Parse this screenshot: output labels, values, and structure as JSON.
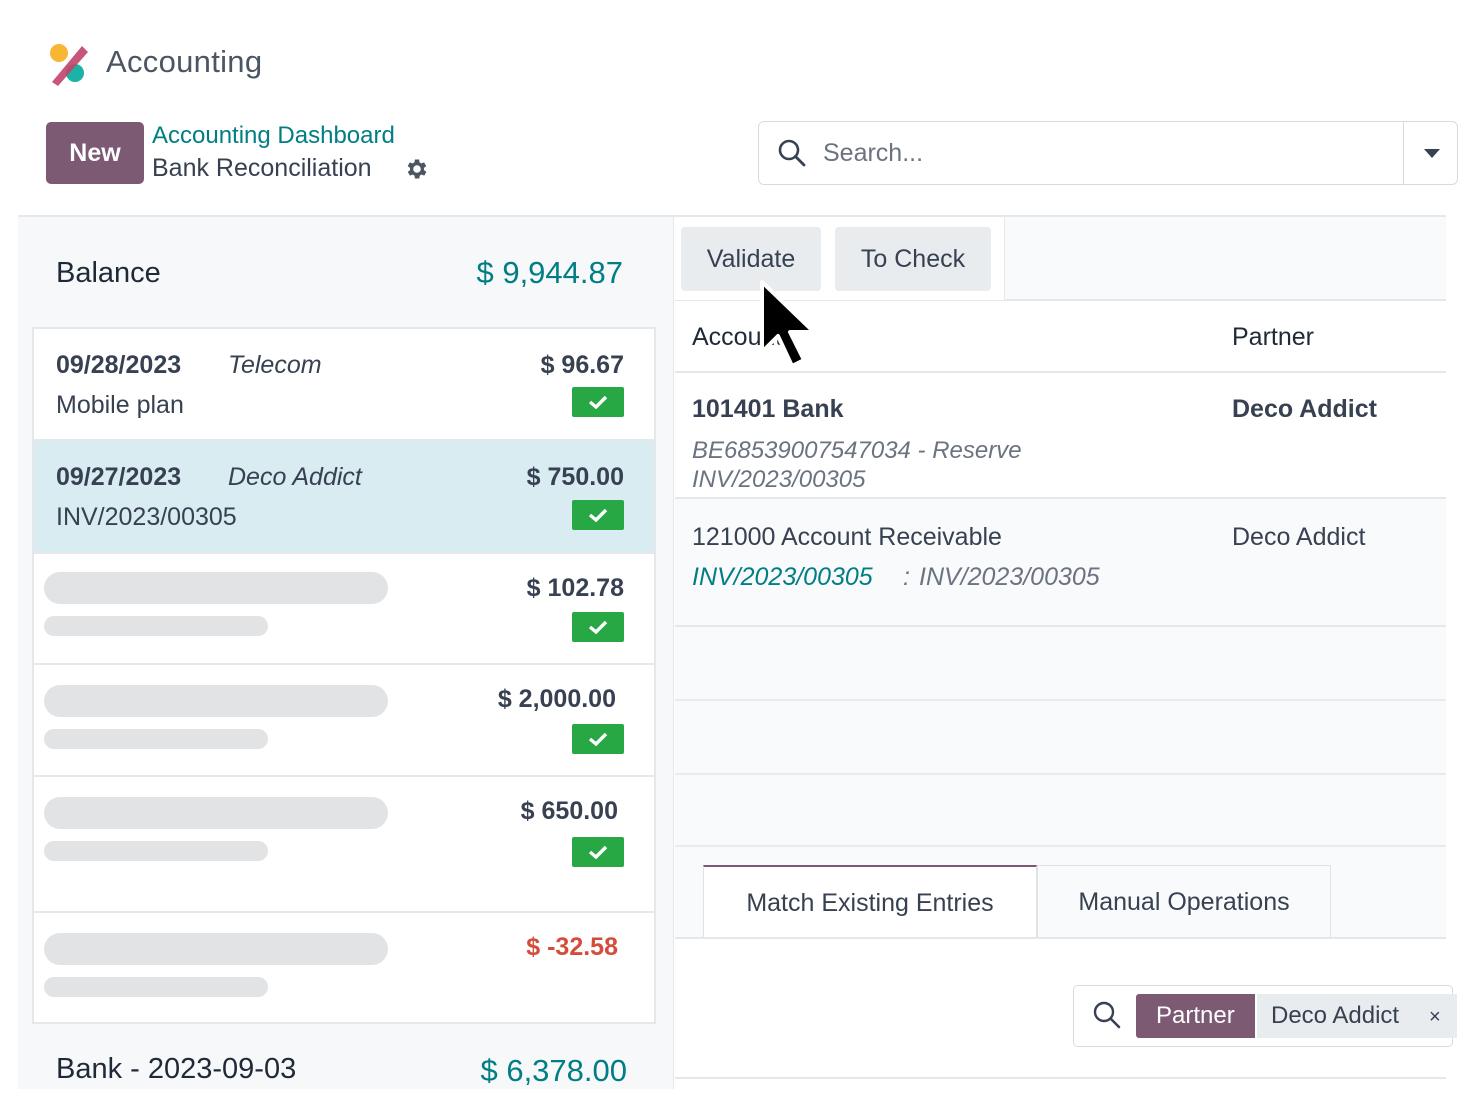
{
  "app": {
    "title": "Accounting",
    "logo_icon": "accounting-logo-icon"
  },
  "control_panel": {
    "new_label": "New",
    "breadcrumb_parent": "Accounting Dashboard",
    "breadcrumb_current": "Bank Reconciliation",
    "settings_icon": "gear-icon",
    "search_placeholder": "Search..."
  },
  "left_panel": {
    "balance_label": "Balance",
    "balance_value": "$ 9,944.87",
    "statement_lines": [
      {
        "date": "09/28/2023",
        "partner": "Telecom",
        "label": "Mobile plan",
        "amount": "$ 96.67",
        "checked": true,
        "selected": false
      },
      {
        "date": "09/27/2023",
        "partner": "Deco Addict",
        "label": "INV/2023/00305",
        "amount": "$ 750.00",
        "checked": true,
        "selected": true
      },
      {
        "placeholder": true,
        "amount": "$ 102.78",
        "checked": true
      },
      {
        "placeholder": true,
        "amount": "$ 2,000.00",
        "checked": true
      },
      {
        "placeholder": true,
        "amount": "$ 650.00",
        "checked": true
      },
      {
        "placeholder": true,
        "amount": "$ -32.58",
        "checked": false,
        "negative": true
      }
    ],
    "bank_label": "Bank - 2023-09-03",
    "bank_value": "$ 6,378.00"
  },
  "right_panel": {
    "validate_label": "Validate",
    "to_check_label": "To Check",
    "columns": {
      "account": "Account",
      "partner": "Partner"
    },
    "lines": [
      {
        "account": "101401 Bank",
        "partner": "Deco Addict",
        "ref_line1": "BE68539007547034 - Reserve",
        "ref_line2": "INV/2023/00305"
      },
      {
        "account": "121000 Account Receivable",
        "partner": "Deco Addict",
        "link": "INV/2023/00305",
        "separator": ":",
        "ref": "INV/2023/00305"
      }
    ],
    "tabs": [
      {
        "label": "Match Existing Entries",
        "active": true
      },
      {
        "label": "Manual Operations",
        "active": false
      }
    ],
    "facet": {
      "field": "Partner",
      "value": "Deco Addict",
      "remove": "×"
    }
  },
  "colors": {
    "brand": "#7c5a73",
    "teal": "#017e84",
    "success": "#28a745",
    "danger": "#d44c3b",
    "selected_row": "#d9ecf2"
  }
}
